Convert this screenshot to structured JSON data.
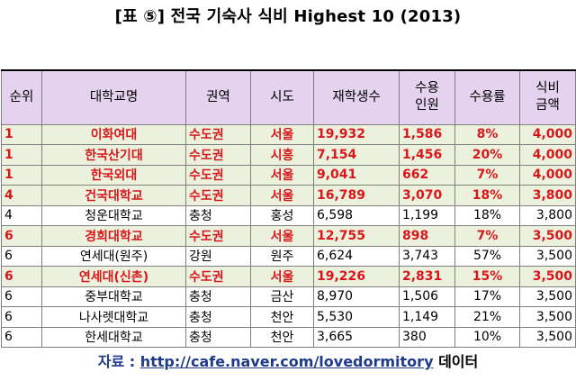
{
  "title": "[표 ⑤] 전국 기숙사 식비 Highest 10 (2013)",
  "table": {
    "headers": {
      "rank": "순위",
      "university": "대학교명",
      "region": "권역",
      "city": "시도",
      "students": "재학생수",
      "capacity_line1": "수용",
      "capacity_line2": "인원",
      "rate": "수용률",
      "meal_line1": "식비",
      "meal_line2": "금액"
    },
    "rows": [
      {
        "rank": "1",
        "university": "이화여대",
        "region": "수도권",
        "city": "서울",
        "students": "19,932",
        "capacity": "1,586",
        "rate": "8%",
        "meal": "4,000",
        "highlight": true
      },
      {
        "rank": "1",
        "university": "한국산기대",
        "region": "수도권",
        "city": "시흥",
        "students": "7,154",
        "capacity": "1,456",
        "rate": "20%",
        "meal": "4,000",
        "highlight": true
      },
      {
        "rank": "1",
        "university": "한국외대",
        "region": "수도권",
        "city": "서울",
        "students": "9,041",
        "capacity": "662",
        "rate": "7%",
        "meal": "4,000",
        "highlight": true
      },
      {
        "rank": "4",
        "university": "건국대학교",
        "region": "수도권",
        "city": "서울",
        "students": "16,789",
        "capacity": "3,070",
        "rate": "18%",
        "meal": "3,800",
        "highlight": true
      },
      {
        "rank": "4",
        "university": "청운대학교",
        "region": "충청",
        "city": "홍성",
        "students": "6,598",
        "capacity": "1,199",
        "rate": "18%",
        "meal": "3,800",
        "highlight": false
      },
      {
        "rank": "6",
        "university": "경희대학교",
        "region": "수도권",
        "city": "서울",
        "students": "12,755",
        "capacity": "898",
        "rate": "7%",
        "meal": "3,500",
        "highlight": true
      },
      {
        "rank": "6",
        "university": "연세대(원주)",
        "region": "강원",
        "city": "원주",
        "students": "6,624",
        "capacity": "3,743",
        "rate": "57%",
        "meal": "3,500",
        "highlight": false
      },
      {
        "rank": "6",
        "university": "연세대(신촌)",
        "region": "수도권",
        "city": "서울",
        "students": "19,226",
        "capacity": "2,831",
        "rate": "15%",
        "meal": "3,500",
        "highlight": true
      },
      {
        "rank": "6",
        "university": "중부대학교",
        "region": "충청",
        "city": "금산",
        "students": "8,970",
        "capacity": "1,506",
        "rate": "17%",
        "meal": "3,500",
        "highlight": false
      },
      {
        "rank": "6",
        "university": "나사렛대학교",
        "region": "충청",
        "city": "천안",
        "students": "5,530",
        "capacity": "1,149",
        "rate": "21%",
        "meal": "3,500",
        "highlight": false
      },
      {
        "rank": "6",
        "university": "한세대학교",
        "region": "충청",
        "city": "천안",
        "students": "3,665",
        "capacity": "380",
        "rate": "10%",
        "meal": "3,500",
        "highlight": false
      }
    ]
  },
  "source": {
    "prefix": "자료 :",
    "link": "http://cafe.naver.com/lovedormitory",
    "suffix": "데이터"
  },
  "colors": {
    "header_bg": "#e4d2ee",
    "highlight_bg": "#ebf1dd",
    "highlight_text": "#d9171b",
    "source_text": "#1f3a8a"
  }
}
